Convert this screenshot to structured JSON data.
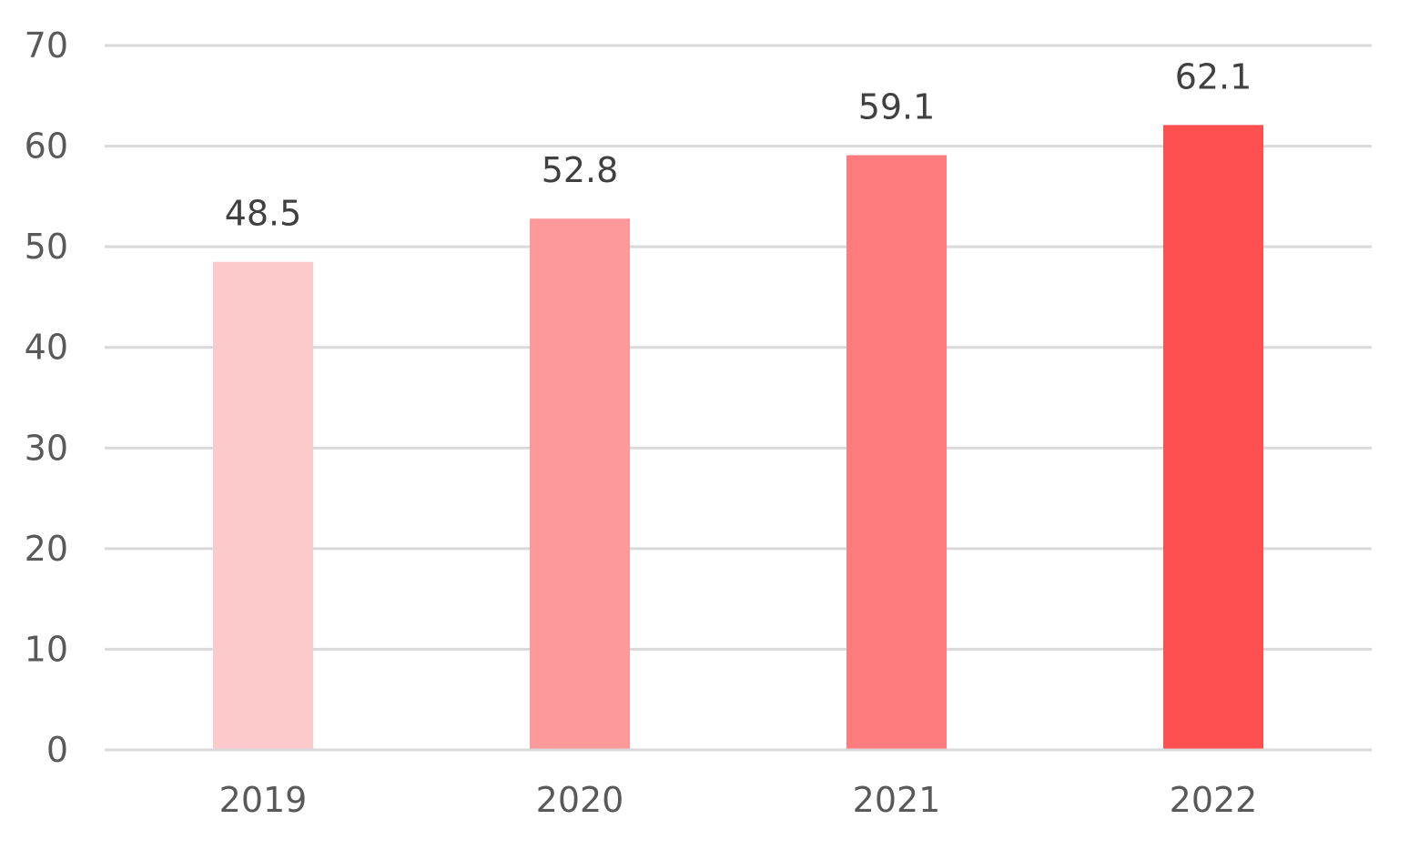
{
  "chart_data": {
    "type": "bar",
    "categories": [
      "2019",
      "2020",
      "2021",
      "2022"
    ],
    "values": [
      48.5,
      52.8,
      59.1,
      62.1
    ],
    "data_labels": [
      "48.5",
      "52.8",
      "59.1",
      "62.1"
    ],
    "colors": [
      "#fdcacb",
      "#fe999b",
      "#fe7b7e",
      "#fe5050"
    ],
    "ylim": [
      0,
      70
    ],
    "yticks": [
      0,
      10,
      20,
      30,
      40,
      50,
      60,
      70
    ],
    "ytick_labels": [
      "0",
      "10",
      "20",
      "30",
      "40",
      "50",
      "60",
      "70"
    ],
    "grid": true,
    "legend": "none",
    "title": "",
    "xlabel": "",
    "ylabel": ""
  }
}
